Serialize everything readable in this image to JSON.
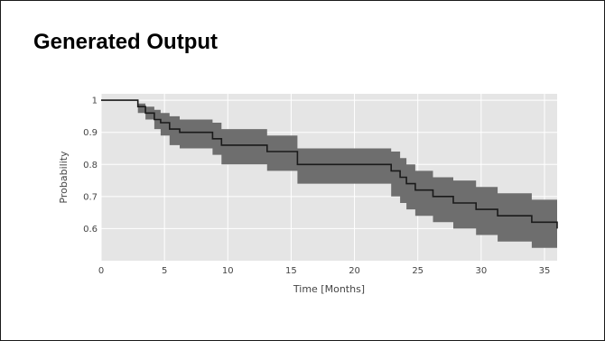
{
  "slide": {
    "title": "Generated Output"
  },
  "chart_data": {
    "type": "line",
    "title": "",
    "xlabel": "Time [Months]",
    "ylabel": "Probability",
    "xlim": [
      0,
      36
    ],
    "ylim": [
      0.5,
      1.02
    ],
    "x_ticks": [
      0,
      5,
      10,
      15,
      20,
      25,
      30,
      35
    ],
    "y_ticks": [
      0.6,
      0.7,
      0.8,
      0.9,
      1
    ],
    "y_tick_labels": [
      "0.6",
      "0.7",
      "0.8",
      "0.9",
      "1"
    ],
    "grid": true,
    "legend": "none",
    "colors": {
      "plot_background": "#e5e5e5",
      "grid": "#ffffff",
      "line": "#1a1a1a",
      "band": "#6e6e6e"
    },
    "series": [
      {
        "step": "hv",
        "x": [
          0,
          2.9,
          3.5,
          4.2,
          4.7,
          5.4,
          6.2,
          8.8,
          9.5,
          13.1,
          15.5,
          22.9,
          23.6,
          24.1,
          24.8,
          26.2,
          27.8,
          29.6,
          31.3,
          34.0,
          36
        ],
        "y": [
          1.0,
          0.98,
          0.96,
          0.94,
          0.93,
          0.91,
          0.9,
          0.88,
          0.86,
          0.84,
          0.8,
          0.78,
          0.76,
          0.74,
          0.72,
          0.7,
          0.68,
          0.66,
          0.64,
          0.62,
          0.6
        ],
        "lower": [
          1.0,
          0.96,
          0.94,
          0.91,
          0.89,
          0.86,
          0.85,
          0.83,
          0.8,
          0.78,
          0.74,
          0.7,
          0.68,
          0.66,
          0.64,
          0.62,
          0.6,
          0.58,
          0.56,
          0.54,
          0.53
        ],
        "upper": [
          1.0,
          0.99,
          0.98,
          0.97,
          0.96,
          0.95,
          0.94,
          0.93,
          0.91,
          0.89,
          0.85,
          0.84,
          0.82,
          0.8,
          0.78,
          0.76,
          0.75,
          0.73,
          0.71,
          0.69,
          0.67
        ]
      }
    ]
  }
}
